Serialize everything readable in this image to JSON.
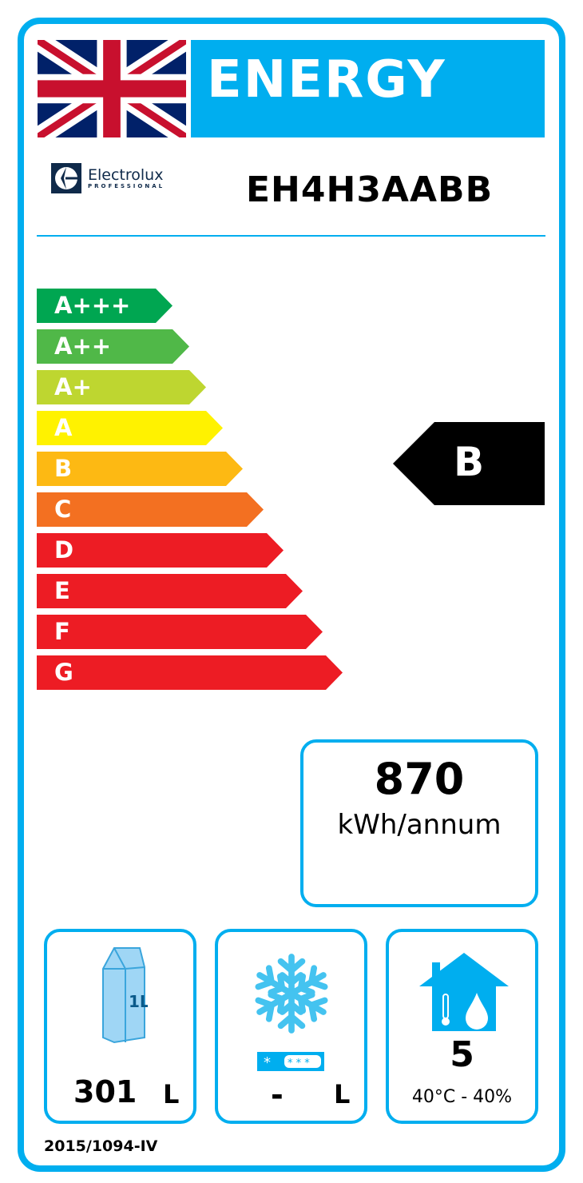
{
  "header": {
    "title": "ENERGY",
    "flag_icon": "union-jack-flag",
    "brand": "Electrolux",
    "brand_sub": "PROFESSIONAL",
    "model": "EH4H3AABB"
  },
  "scale": [
    {
      "label": "A+++",
      "color": "#00a651"
    },
    {
      "label": "A++",
      "color": "#50b848"
    },
    {
      "label": "A+",
      "color": "#bed630"
    },
    {
      "label": "A",
      "color": "#fff200"
    },
    {
      "label": "B",
      "color": "#fdb913"
    },
    {
      "label": "C",
      "color": "#f37021"
    },
    {
      "label": "D",
      "color": "#ed1c24"
    },
    {
      "label": "E",
      "color": "#ed1c24"
    },
    {
      "label": "F",
      "color": "#ed1c24"
    },
    {
      "label": "G",
      "color": "#ed1c24"
    }
  ],
  "rating": {
    "class": "B"
  },
  "consumption": {
    "value": "870",
    "unit": "kWh/annum"
  },
  "chilled_volume": {
    "value": "301",
    "unit": "L",
    "icon": "milk-carton-icon",
    "carton_text": "1L"
  },
  "frozen_volume": {
    "value": "-",
    "unit": "L",
    "icon": "snowflake-icon"
  },
  "climate_class": {
    "value": "5",
    "conditions": "40°C - 40%",
    "icon": "house-climate-icon"
  },
  "regulation": "2015/1094-IV",
  "accent_color": "#00aeef"
}
